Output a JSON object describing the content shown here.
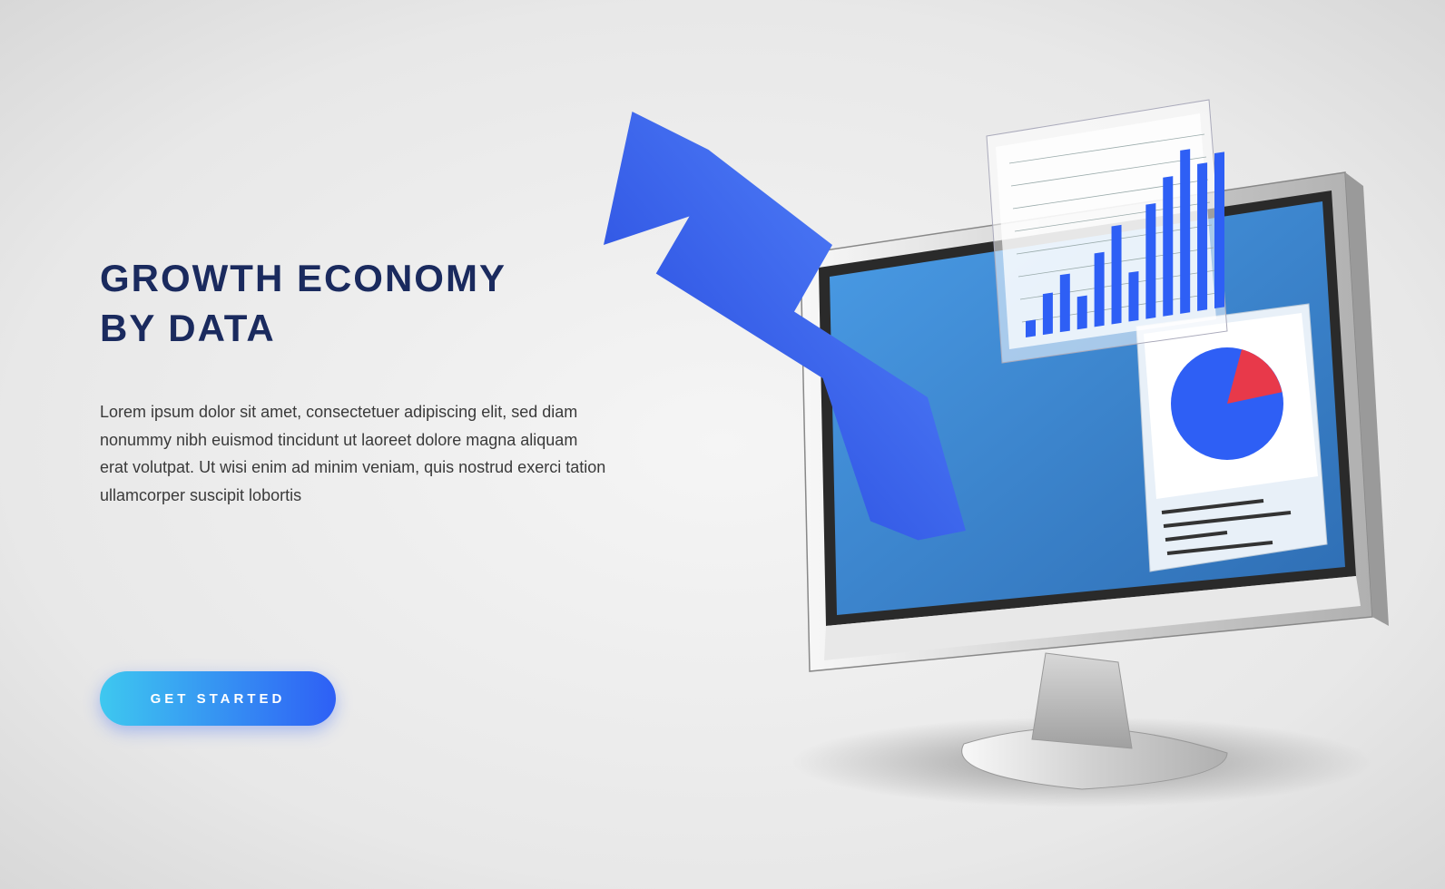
{
  "heading_line1": "GROWTH ECONOMY",
  "heading_line2": "BY DATA",
  "body": "Lorem ipsum dolor sit amet, consectetuer adipiscing elit, sed diam nonummy nibh euismod tincidunt ut laoreet dolore magna aliquam erat volutpat. Ut wisi enim ad minim veniam, quis nostrud exerci tation ullamcorper suscipit lobortis",
  "cta_label": "GET STARTED",
  "colors": {
    "heading": "#1a2a5e",
    "body": "#3a3a3a",
    "button_grad_start": "#3ec8f0",
    "button_grad_end": "#2e5ff5",
    "arrow_grad_start": "#5b8cff",
    "arrow_grad_end": "#1e3fd8",
    "screen_fill": "#3a8cd8",
    "screen_fill_dark": "#2e6db3",
    "monitor_body_light": "#f0f0f0",
    "monitor_body_dark": "#b8b8b8",
    "bezel": "#2a2a2a",
    "card_bg": "#ffffff",
    "card_bg_trans": "rgba(255,255,255,0.55)",
    "pie_blue": "#2e5ff5",
    "pie_red": "#e8394a",
    "grid_line": "#888888"
  },
  "bar_chart": {
    "type": "bar",
    "values": [
      10,
      25,
      35,
      20,
      45,
      60,
      30,
      70,
      85,
      100,
      90,
      95
    ],
    "bar_color": "#2e5ff5",
    "grid_rows": 8,
    "background": "rgba(255,255,255,0.55)"
  },
  "pie_chart": {
    "type": "pie",
    "slices": [
      {
        "label": "blue",
        "value": 70,
        "color": "#2e5ff5"
      },
      {
        "label": "red",
        "value": 30,
        "color": "#e8394a"
      }
    ],
    "background": "#ffffff",
    "text_lines": 4
  },
  "arrow": {
    "type": "growth-arrow",
    "color_start": "#5b8cff",
    "color_end": "#1e3fd8"
  }
}
